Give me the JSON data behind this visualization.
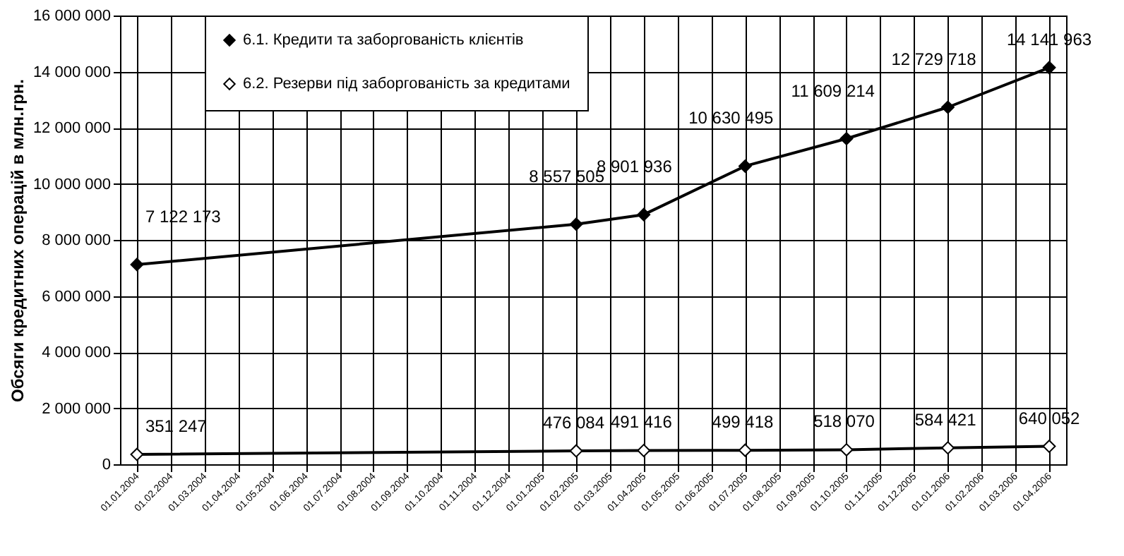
{
  "chart_data": {
    "type": "line",
    "ylabel": "Обсяги кредитних операцій в млн.грн.",
    "categories": [
      "01.01.2004",
      "01.02.2004",
      "01.03.2004",
      "01.04.2004",
      "01.05.2004",
      "01.06.2004",
      "01.07.2004",
      "01.08.2004",
      "01.09.2004",
      "01.10.2004",
      "01.11.2004",
      "01.12.2004",
      "01.01.2005",
      "01.02.2005",
      "01.03.2005",
      "01.04.2005",
      "01.05.2005",
      "01.06.2005",
      "01.07.2005",
      "01.08.2005",
      "01.09.2005",
      "01.10.2005",
      "01.11.2005",
      "01.12.2005",
      "01.01.2006",
      "01.02.2006",
      "01.03.2006",
      "01.04.2006"
    ],
    "series": [
      {
        "name": "6.1. Кредити та заборгованість клієнтів",
        "color": "#000000",
        "values": [
          7122173,
          null,
          null,
          null,
          null,
          null,
          null,
          null,
          null,
          null,
          null,
          null,
          null,
          8557505,
          null,
          8901936,
          null,
          null,
          10630495,
          null,
          null,
          11609214,
          null,
          null,
          12729718,
          null,
          null,
          14141963
        ]
      },
      {
        "name": "6.2. Резерви під заборгованість за кредитами",
        "color": "#ffffff",
        "values": [
          351247,
          null,
          null,
          null,
          null,
          null,
          null,
          null,
          null,
          null,
          null,
          null,
          null,
          476084,
          null,
          491416,
          null,
          null,
          499418,
          null,
          null,
          518070,
          null,
          null,
          584421,
          null,
          null,
          640052
        ]
      }
    ],
    "ylim": [
      0,
      16000000
    ],
    "yticks": [
      {
        "value": 0,
        "label": "0"
      },
      {
        "value": 2000000,
        "label": "2 000 000"
      },
      {
        "value": 4000000,
        "label": "4 000 000"
      },
      {
        "value": 6000000,
        "label": "6 000 000"
      },
      {
        "value": 8000000,
        "label": "8 000 000"
      },
      {
        "value": 10000000,
        "label": "10 000 000"
      },
      {
        "value": 12000000,
        "label": "12 000 000"
      },
      {
        "value": 14000000,
        "label": "14 000 000"
      },
      {
        "value": 16000000,
        "label": "16 000 000"
      }
    ],
    "grid": true,
    "legend": "top left",
    "marker": "diamond",
    "line_style": "solid",
    "data_labels": true
  }
}
